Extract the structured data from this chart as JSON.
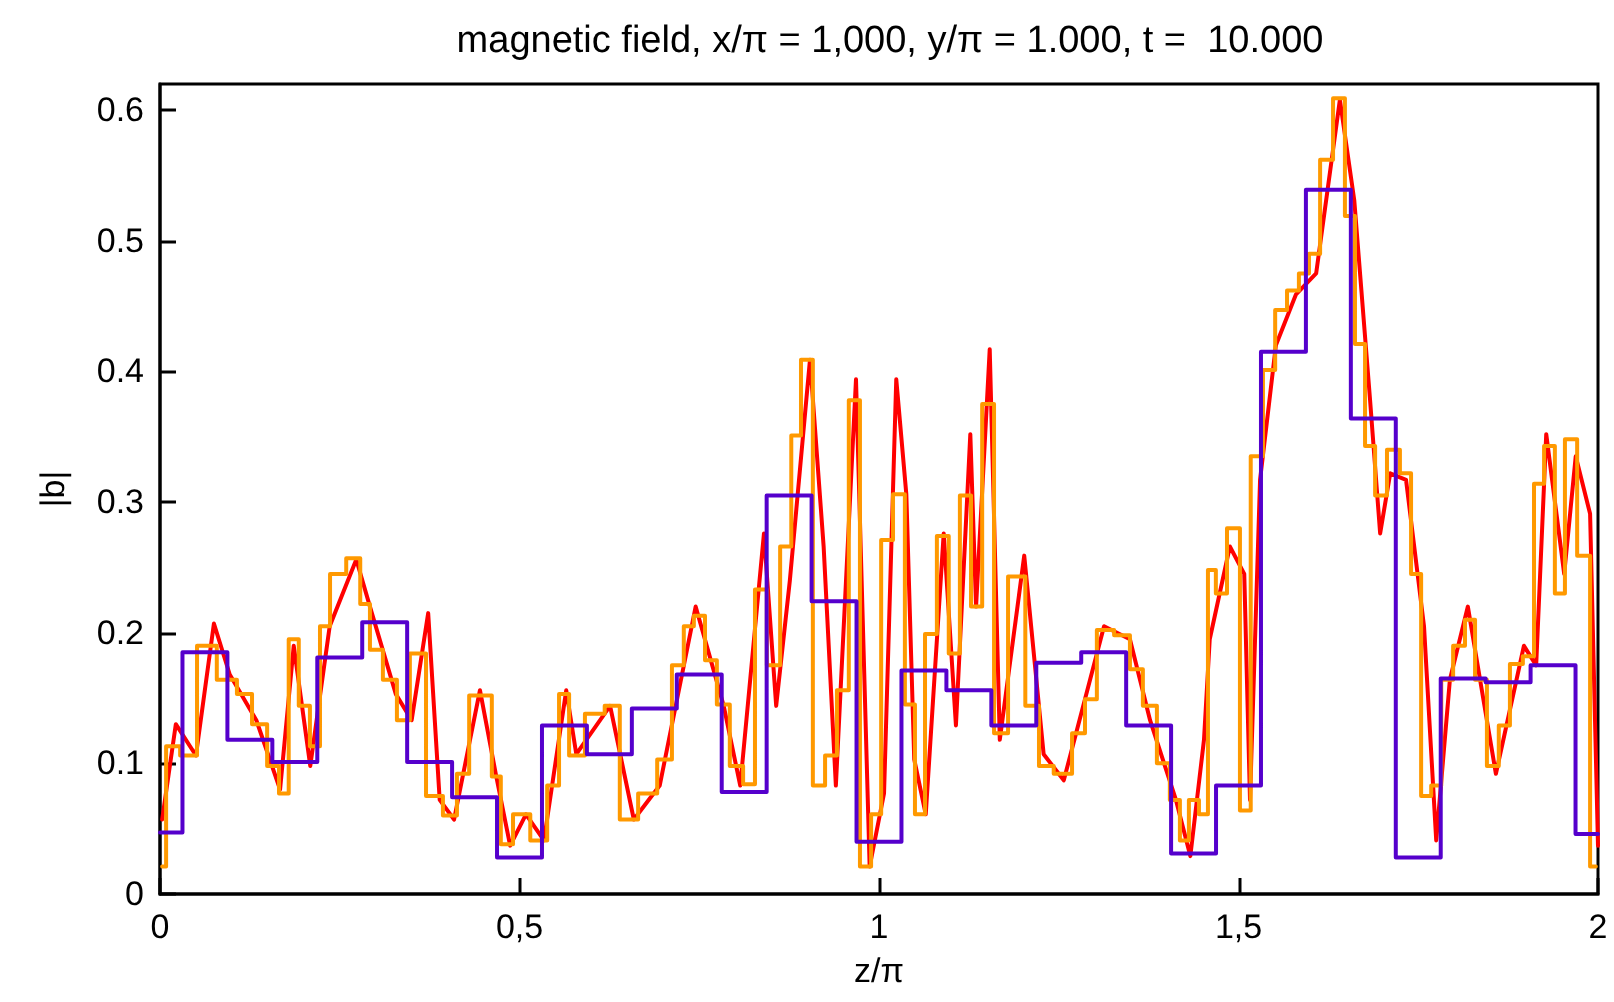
{
  "chart_data": {
    "type": "line",
    "title": "magnetic field, x/π = 1,000, y/π = 1.000, t =  10.000",
    "xlabel": "z/π",
    "ylabel": "|b|",
    "xlim": [
      0,
      2
    ],
    "xticks": [
      0,
      {
        "value": 0.5,
        "label": "0,5"
      },
      1,
      {
        "value": 1.5,
        "label": "1,5"
      },
      2
    ],
    "ylim": [
      0,
      0.62
    ],
    "yticks": [
      0,
      0.1,
      0.2,
      0.3,
      0.4,
      0.5,
      0.6
    ],
    "grid": false,
    "marker": "none",
    "line_style": "solid",
    "series": [
      {
        "color": "#ff0000",
        "x": [
          0.003,
          0.022,
          0.05,
          0.075,
          0.097,
          0.134,
          0.167,
          0.186,
          0.209,
          0.236,
          0.273,
          0.292,
          0.328,
          0.35,
          0.373,
          0.389,
          0.409,
          0.445,
          0.467,
          0.487,
          0.509,
          0.534,
          0.565,
          0.579,
          0.626,
          0.659,
          0.695,
          0.745,
          0.784,
          0.807,
          0.84,
          0.857,
          0.876,
          0.904,
          0.923,
          0.94,
          0.968,
          0.987,
          1.007,
          1.024,
          1.038,
          1.049,
          1.065,
          1.09,
          1.107,
          1.127,
          1.135,
          1.154,
          1.168,
          1.202,
          1.229,
          1.257,
          1.313,
          1.349,
          1.377,
          1.413,
          1.433,
          1.452,
          1.46,
          1.488,
          1.508,
          1.516,
          1.53,
          1.552,
          1.58,
          1.608,
          1.641,
          1.661,
          1.683,
          1.697,
          1.711,
          1.733,
          1.758,
          1.775,
          1.794,
          1.819,
          1.836,
          1.858,
          1.897,
          1.914,
          1.928,
          1.953,
          1.969,
          1.989,
          2.0
        ],
        "values": [
          0.057,
          0.13,
          0.106,
          0.207,
          0.168,
          0.133,
          0.08,
          0.19,
          0.098,
          0.205,
          0.256,
          0.22,
          0.153,
          0.133,
          0.215,
          0.072,
          0.057,
          0.156,
          0.092,
          0.037,
          0.061,
          0.041,
          0.156,
          0.107,
          0.144,
          0.057,
          0.083,
          0.22,
          0.144,
          0.083,
          0.276,
          0.144,
          0.24,
          0.409,
          0.266,
          0.083,
          0.394,
          0.021,
          0.077,
          0.394,
          0.306,
          0.103,
          0.061,
          0.276,
          0.129,
          0.352,
          0.22,
          0.417,
          0.118,
          0.259,
          0.107,
          0.087,
          0.205,
          0.195,
          0.133,
          0.072,
          0.029,
          0.118,
          0.195,
          0.266,
          0.245,
          0.072,
          0.317,
          0.42,
          0.459,
          0.475,
          0.608,
          0.531,
          0.378,
          0.276,
          0.322,
          0.317,
          0.205,
          0.041,
          0.164,
          0.22,
          0.164,
          0.092,
          0.19,
          0.175,
          0.352,
          0.245,
          0.335,
          0.291,
          0.037
        ]
      },
      {
        "type": "step",
        "color": "#ff9900",
        "x": [
          0.003,
          0.014,
          0.042,
          0.061,
          0.097,
          0.117,
          0.139,
          0.159,
          0.172,
          0.186,
          0.2,
          0.217,
          0.228,
          0.245,
          0.273,
          0.284,
          0.3,
          0.32,
          0.339,
          0.356,
          0.384,
          0.403,
          0.423,
          0.437,
          0.456,
          0.467,
          0.481,
          0.501,
          0.529,
          0.548,
          0.562,
          0.576,
          0.606,
          0.631,
          0.648,
          0.682,
          0.701,
          0.723,
          0.734,
          0.751,
          0.765,
          0.784,
          0.801,
          0.821,
          0.834,
          0.854,
          0.871,
          0.885,
          0.898,
          0.918,
          0.932,
          0.951,
          0.965,
          0.982,
          0.996,
          1.01,
          1.029,
          1.043,
          1.057,
          1.071,
          1.09,
          1.104,
          1.121,
          1.135,
          1.152,
          1.168,
          1.191,
          1.216,
          1.229,
          1.257,
          1.28,
          1.293,
          1.313,
          1.341,
          1.357,
          1.377,
          1.396,
          1.413,
          1.424,
          1.438,
          1.452,
          1.463,
          1.474,
          1.494,
          1.51,
          1.524,
          1.544,
          1.558,
          1.577,
          1.591,
          1.605,
          1.622,
          1.641,
          1.655,
          1.669,
          1.683,
          1.697,
          1.716,
          1.733,
          1.747,
          1.761,
          1.775,
          1.789,
          1.808,
          1.822,
          1.836,
          1.855,
          1.869,
          1.886,
          1.905,
          1.917,
          1.933,
          1.947,
          1.961,
          1.981,
          1.997
        ],
        "values": [
          0.021,
          0.113,
          0.106,
          0.19,
          0.164,
          0.153,
          0.13,
          0.098,
          0.077,
          0.195,
          0.144,
          0.113,
          0.205,
          0.245,
          0.257,
          0.222,
          0.187,
          0.164,
          0.133,
          0.184,
          0.075,
          0.06,
          0.092,
          0.152,
          0.152,
          0.09,
          0.038,
          0.061,
          0.041,
          0.083,
          0.153,
          0.106,
          0.138,
          0.144,
          0.057,
          0.077,
          0.103,
          0.175,
          0.205,
          0.213,
          0.179,
          0.145,
          0.098,
          0.084,
          0.233,
          0.175,
          0.266,
          0.351,
          0.409,
          0.083,
          0.106,
          0.156,
          0.378,
          0.021,
          0.061,
          0.271,
          0.306,
          0.145,
          0.061,
          0.199,
          0.274,
          0.184,
          0.305,
          0.22,
          0.375,
          0.123,
          0.243,
          0.144,
          0.098,
          0.092,
          0.123,
          0.149,
          0.202,
          0.198,
          0.172,
          0.144,
          0.1,
          0.072,
          0.041,
          0.072,
          0.061,
          0.248,
          0.23,
          0.28,
          0.064,
          0.335,
          0.401,
          0.447,
          0.462,
          0.475,
          0.49,
          0.562,
          0.609,
          0.519,
          0.421,
          0.343,
          0.305,
          0.34,
          0.322,
          0.245,
          0.075,
          0.083,
          0.164,
          0.19,
          0.21,
          0.164,
          0.098,
          0.129,
          0.176,
          0.182,
          0.314,
          0.343,
          0.23,
          0.348,
          0.259,
          0.021
        ]
      },
      {
        "type": "step",
        "color": "#5500cc",
        "x": [
          0,
          0.0625,
          0.125,
          0.1875,
          0.25,
          0.3125,
          0.375,
          0.4375,
          0.5,
          0.5625,
          0.625,
          0.6875,
          0.75,
          0.8125,
          0.875,
          0.9375,
          1,
          1.0625,
          1.125,
          1.1875,
          1.25,
          1.3125,
          1.375,
          1.4375,
          1.5,
          1.5625,
          1.625,
          1.6875,
          1.75,
          1.8125,
          1.875,
          1.9375,
          2
        ],
        "values": [
          0.047,
          0.185,
          0.118,
          0.101,
          0.181,
          0.208,
          0.101,
          0.074,
          0.028,
          0.129,
          0.107,
          0.142,
          0.168,
          0.078,
          0.305,
          0.224,
          0.04,
          0.171,
          0.156,
          0.129,
          0.177,
          0.185,
          0.129,
          0.031,
          0.083,
          0.415,
          0.539,
          0.364,
          0.028,
          0.165,
          0.162,
          0.175,
          0.046
        ]
      }
    ]
  }
}
